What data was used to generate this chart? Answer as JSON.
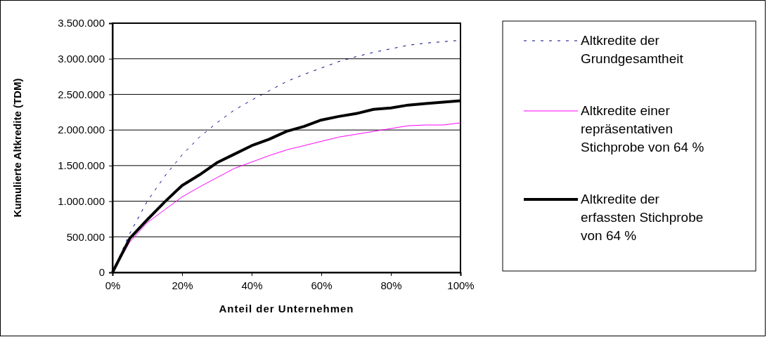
{
  "chart_data": {
    "type": "line",
    "xlabel": "Anteil der Unternehmen",
    "ylabel": "Kumulierte Altkredite (TDM)",
    "x": [
      0,
      5,
      10,
      15,
      20,
      25,
      30,
      35,
      40,
      45,
      50,
      55,
      60,
      65,
      70,
      75,
      80,
      85,
      90,
      95,
      100
    ],
    "xlim": [
      0,
      100
    ],
    "xticks": [
      {
        "value": 0,
        "label": "0%"
      },
      {
        "value": 20,
        "label": "20%"
      },
      {
        "value": 40,
        "label": "40%"
      },
      {
        "value": 60,
        "label": "60%"
      },
      {
        "value": 80,
        "label": "80%"
      },
      {
        "value": 100,
        "label": "100%"
      }
    ],
    "ylim": [
      0,
      3500000
    ],
    "yticks": [
      {
        "value": 0,
        "label": "0"
      },
      {
        "value": 500000,
        "label": "500.000"
      },
      {
        "value": 1000000,
        "label": "1.000.000"
      },
      {
        "value": 1500000,
        "label": "1.500.000"
      },
      {
        "value": 2000000,
        "label": "2.000.000"
      },
      {
        "value": 2500000,
        "label": "2.500.000"
      },
      {
        "value": 3000000,
        "label": "3.000.000"
      },
      {
        "value": 3500000,
        "label": "3.500.000"
      }
    ],
    "grid": "y",
    "legend": "right",
    "marker": "none",
    "series": [
      {
        "name": "Altkredite der Grundgesamtheit",
        "color": "#000080",
        "line_style": "dashed",
        "values": [
          0,
          550000,
          1000000,
          1350000,
          1650000,
          1900000,
          2100000,
          2280000,
          2420000,
          2550000,
          2680000,
          2780000,
          2870000,
          2960000,
          3030000,
          3090000,
          3140000,
          3190000,
          3220000,
          3240000,
          3260000
        ]
      },
      {
        "name": "Altkredite einer repräsentativen Stichprobe von 64 %",
        "color": "#ff00ff",
        "line_style": "solid",
        "values": [
          0,
          430000,
          700000,
          880000,
          1060000,
          1200000,
          1330000,
          1460000,
          1550000,
          1640000,
          1720000,
          1780000,
          1840000,
          1900000,
          1940000,
          1980000,
          2020000,
          2060000,
          2070000,
          2070000,
          2100000
        ]
      },
      {
        "name": "Altkredite der erfassten Stichprobe von 64 %",
        "color": "#000000",
        "line_style": "solid",
        "values": [
          0,
          480000,
          740000,
          990000,
          1220000,
          1370000,
          1540000,
          1660000,
          1780000,
          1870000,
          1980000,
          2050000,
          2140000,
          2190000,
          2230000,
          2290000,
          2310000,
          2350000,
          2370000,
          2390000,
          2410000
        ]
      }
    ]
  }
}
